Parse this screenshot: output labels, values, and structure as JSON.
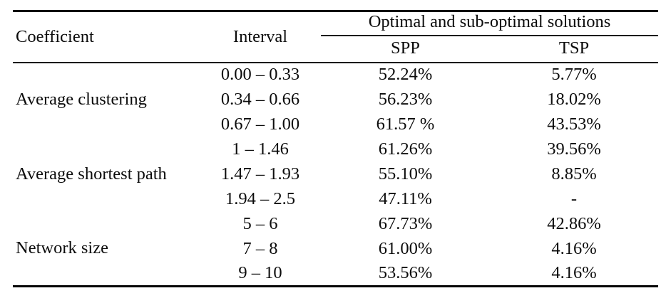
{
  "table": {
    "header": {
      "coefficient": "Coefficient",
      "interval": "Interval",
      "solutions_group": "Optimal and sub-optimal solutions",
      "spp": "SPP",
      "tsp": "TSP"
    },
    "groups": [
      {
        "coefficient": "Average clustering",
        "rows": [
          {
            "interval": "0.00 – 0.33",
            "spp": "52.24%",
            "tsp": "5.77%"
          },
          {
            "interval": "0.34 – 0.66",
            "spp": "56.23%",
            "tsp": "18.02%"
          },
          {
            "interval": "0.67 – 1.00",
            "spp": "61.57 %",
            "tsp": "43.53%"
          }
        ]
      },
      {
        "coefficient": "Average shortest path",
        "rows": [
          {
            "interval": "1 – 1.46",
            "spp": "61.26%",
            "tsp": "39.56%"
          },
          {
            "interval": "1.47 – 1.93",
            "spp": "55.10%",
            "tsp": "8.85%"
          },
          {
            "interval": "1.94 – 2.5",
            "spp": "47.11%",
            "tsp": "-"
          }
        ]
      },
      {
        "coefficient": "Network size",
        "rows": [
          {
            "interval": "5 – 6",
            "spp": "67.73%",
            "tsp": "42.86%"
          },
          {
            "interval": "7 – 8",
            "spp": "61.00%",
            "tsp": "4.16%"
          },
          {
            "interval": "9 – 10",
            "spp": "53.56%",
            "tsp": "4.16%"
          }
        ]
      }
    ]
  }
}
